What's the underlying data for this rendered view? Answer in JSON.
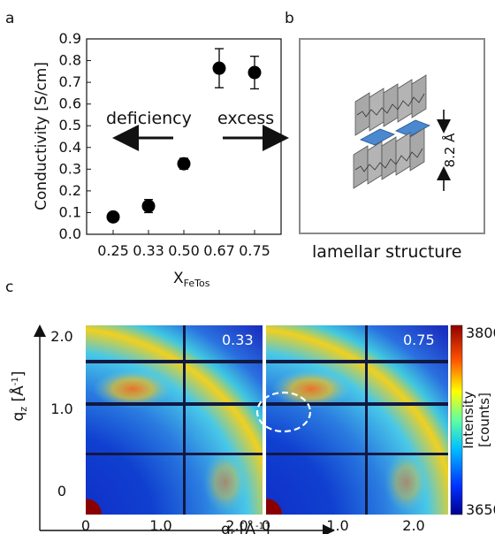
{
  "panels": {
    "a": "a",
    "b": "b",
    "c": "c"
  },
  "chart_data": [
    {
      "type": "scatter",
      "panel": "a",
      "title": "",
      "ylabel": "Conductivity [S/cm]",
      "xlabel_main": "X",
      "xlabel_sub": "FeTos",
      "categories": [
        "0.25",
        "0.33",
        "0.50",
        "0.67",
        "0.75"
      ],
      "values": [
        0.08,
        0.13,
        0.325,
        0.765,
        0.745
      ],
      "errors": [
        0.015,
        0.03,
        0.025,
        0.09,
        0.075
      ],
      "ylim": [
        0.0,
        0.9
      ],
      "yticks": [
        "0.0",
        "0.1",
        "0.2",
        "0.3",
        "0.4",
        "0.5",
        "0.6",
        "0.7",
        "0.8",
        "0.9"
      ],
      "annotations": {
        "left": "deficiency",
        "right": "excess"
      },
      "grid": false
    },
    {
      "type": "heatmap",
      "panel": "c",
      "subpanels": [
        "0.33",
        "0.75"
      ],
      "xlabel_main": "q",
      "xlabel_sub": "r",
      "xlabel_unit": " [Å",
      "xlabel_exp": "-1",
      "xlabel_end": "]",
      "ylabel_main": "q",
      "ylabel_sub": "z",
      "ylabel_unit": " [Å",
      "ylabel_exp": "-1",
      "ylabel_end": "]",
      "xticks": [
        "0",
        "1.0",
        "2.0"
      ],
      "yticks": [
        "0",
        "1.0",
        "2.0"
      ],
      "colorbar": {
        "label": "Intensity",
        "label2": "[counts]",
        "min": "3650",
        "max": "3800"
      }
    }
  ],
  "schematic": {
    "caption": "lamellar structure",
    "spacing": "8.2 Å"
  }
}
